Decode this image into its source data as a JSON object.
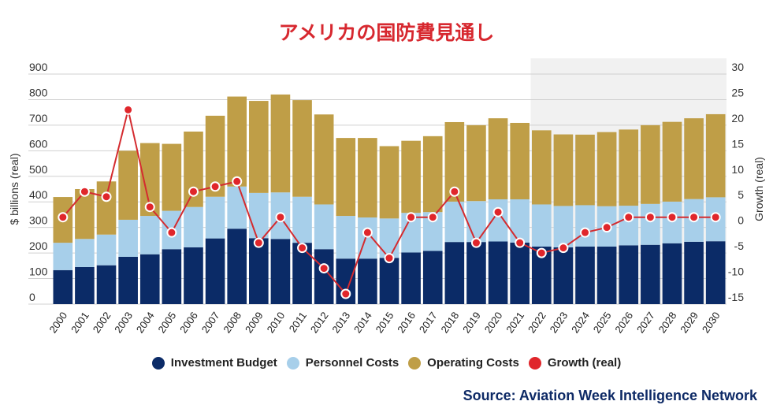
{
  "title": "アメリカの国防費見通し",
  "source": "Source: Aviation Week Intelligence Network",
  "colors": {
    "investment": "#0b2b67",
    "personnel": "#a7cfea",
    "operating": "#bf9e47",
    "growth": "#e0262b",
    "forecast_shade": "#f1f1f1",
    "title": "#d7282f"
  },
  "chart_data": {
    "type": "bar",
    "stacked": true,
    "title": "アメリカの国防費見通し",
    "xlabel": "",
    "ylabel": "$ billions (real)",
    "y2label": "Growth (real)",
    "ylim": [
      0,
      900
    ],
    "y2lim": [
      -15,
      30
    ],
    "yticks": [
      0,
      100,
      200,
      300,
      400,
      500,
      600,
      700,
      800,
      900
    ],
    "y2ticks": [
      -15,
      -10,
      -5,
      0,
      5,
      10,
      15,
      20,
      25,
      30
    ],
    "grid": true,
    "legend_position": "bottom",
    "forecast_start": "2022",
    "categories": [
      "2000",
      "2001",
      "2002",
      "2003",
      "2004",
      "2005",
      "2006",
      "2007",
      "2008",
      "2009",
      "2010",
      "2011",
      "2012",
      "2013",
      "2014",
      "2015",
      "2016",
      "2017",
      "2018",
      "2019",
      "2020",
      "2021",
      "2022",
      "2023",
      "2024",
      "2025",
      "2026",
      "2027",
      "2028",
      "2029",
      "2030"
    ],
    "series": [
      {
        "name": "Investment Budget",
        "type": "bar",
        "axis": "left",
        "values": [
          133,
          145,
          152,
          185,
          195,
          215,
          222,
          257,
          295,
          258,
          255,
          240,
          215,
          178,
          178,
          181,
          202,
          208,
          243,
          243,
          245,
          241,
          225,
          222,
          225,
          225,
          230,
          232,
          238,
          244,
          246
        ]
      },
      {
        "name": "Personnel Costs",
        "type": "bar",
        "axis": "left",
        "values": [
          107,
          110,
          120,
          145,
          150,
          150,
          158,
          163,
          165,
          177,
          182,
          180,
          175,
          167,
          161,
          154,
          155,
          152,
          158,
          160,
          165,
          169,
          165,
          162,
          162,
          158,
          155,
          160,
          163,
          167,
          172
        ]
      },
      {
        "name": "Operating Costs",
        "type": "bar",
        "axis": "left",
        "values": [
          179,
          195,
          208,
          270,
          285,
          262,
          295,
          317,
          352,
          360,
          383,
          378,
          352,
          305,
          311,
          283,
          282,
          297,
          311,
          297,
          317,
          299,
          290,
          280,
          276,
          290,
          298,
          308,
          312,
          316,
          325
        ]
      },
      {
        "name": "Growth (real)",
        "type": "line",
        "axis": "right",
        "values": [
          2,
          7,
          6,
          23,
          4,
          -1,
          7,
          8,
          9,
          -3,
          2,
          -4,
          -8,
          -13,
          -1,
          -6,
          2,
          2,
          7,
          -3,
          3,
          -3,
          -5,
          -4,
          -1,
          0,
          2,
          2,
          2,
          2,
          2
        ]
      }
    ]
  },
  "legend": [
    {
      "label": "Investment Budget",
      "color": "#0b2b67"
    },
    {
      "label": "Personnel Costs",
      "color": "#a7cfea"
    },
    {
      "label": "Operating Costs",
      "color": "#bf9e47"
    },
    {
      "label": "Growth (real)",
      "color": "#e0262b"
    }
  ]
}
